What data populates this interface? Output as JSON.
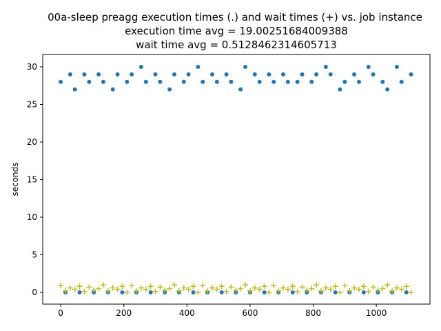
{
  "chart_data": {
    "type": "scatter",
    "title": [
      "00a-sleep preagg execution times (.) and wait times (+) vs. job instance",
      "execution time avg = 19.00251684009388",
      "wait time avg = 0.5128462314605713"
    ],
    "y_label": "seconds",
    "xlim": [
      -57,
      1170
    ],
    "ylim": [
      -1.56,
      31.65
    ],
    "xticks": [
      0,
      200,
      400,
      600,
      800,
      1000
    ],
    "yticks": [
      0,
      5,
      10,
      15,
      20,
      25,
      30
    ],
    "x": [
      0,
      15,
      30,
      45,
      60,
      75,
      90,
      105,
      120,
      135,
      150,
      165,
      180,
      195,
      210,
      225,
      240,
      255,
      270,
      285,
      300,
      315,
      330,
      345,
      360,
      375,
      390,
      405,
      420,
      435,
      450,
      465,
      480,
      495,
      510,
      525,
      540,
      555,
      570,
      585,
      600,
      615,
      630,
      645,
      660,
      675,
      690,
      705,
      720,
      735,
      750,
      765,
      780,
      795,
      810,
      825,
      840,
      855,
      870,
      885,
      900,
      915,
      930,
      945,
      960,
      975,
      990,
      1005,
      1020,
      1035,
      1050,
      1065,
      1080,
      1095,
      1110
    ],
    "series": [
      {
        "marker": "dot",
        "color": "#1f77b4",
        "values": [
          28,
          0,
          29,
          27,
          0,
          29,
          28,
          0,
          29,
          28,
          0,
          27,
          29,
          0,
          28,
          29,
          0,
          30,
          28,
          0,
          29,
          28,
          0,
          27,
          29,
          0,
          28,
          29,
          0,
          30,
          28,
          0,
          29,
          28,
          0,
          29,
          28,
          0,
          27,
          30,
          0,
          29,
          28,
          0,
          29,
          28,
          0,
          29,
          28,
          0,
          28,
          29,
          0,
          28,
          29,
          0,
          30,
          29,
          0,
          27,
          28,
          0,
          29,
          28,
          0,
          30,
          29,
          0,
          28,
          27,
          0,
          30,
          28,
          0,
          29
        ]
      },
      {
        "marker": "plus",
        "color": "#bcbd22",
        "values": [
          0.9,
          0.2,
          0.6,
          0.4,
          0.8,
          0.1,
          0.7,
          0.3,
          0.5,
          1.0,
          0.2,
          0.6,
          0.4,
          0.8,
          0.0,
          0.9,
          0.2,
          0.6,
          0.4,
          0.8,
          0.1,
          0.7,
          0.3,
          0.5,
          1.0,
          0.2,
          0.6,
          0.4,
          0.8,
          0.0,
          0.9,
          0.2,
          0.6,
          0.4,
          0.8,
          0.1,
          0.7,
          0.3,
          0.5,
          1.0,
          0.2,
          0.6,
          0.4,
          0.8,
          0.0,
          0.9,
          0.2,
          0.6,
          0.4,
          0.8,
          0.1,
          0.7,
          0.3,
          0.5,
          1.0,
          0.2,
          0.6,
          0.4,
          0.8,
          0.0,
          0.9,
          0.2,
          0.6,
          0.4,
          0.8,
          0.1,
          0.7,
          0.3,
          0.5,
          1.0,
          0.2,
          0.6,
          0.4,
          0.8,
          0.0
        ]
      }
    ]
  }
}
